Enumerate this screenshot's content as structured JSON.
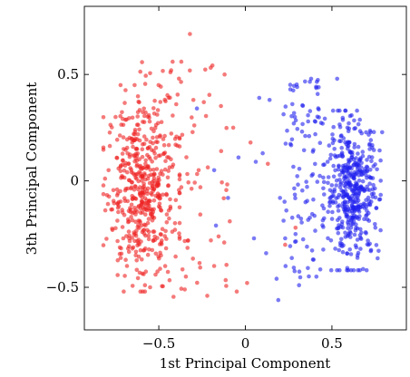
{
  "chart_data": {
    "type": "scatter",
    "title": "",
    "xlabel": "1st Principal Component",
    "ylabel": "3th Principal Component",
    "xlim": [
      -0.93,
      0.93
    ],
    "ylim": [
      -0.7,
      0.82
    ],
    "xticks": [
      -0.5,
      0,
      0.5
    ],
    "xtick_labels": [
      "−0.5",
      "0",
      "0.5"
    ],
    "yticks": [
      -0.5,
      0,
      0.5
    ],
    "ytick_labels": [
      "−0.5",
      "0",
      "0.5"
    ],
    "grid": false,
    "legend": "none",
    "series": [
      {
        "color": "#ee2222",
        "approx_points": 600,
        "main_cluster": {
          "x_range": [
            -0.82,
            -0.38
          ],
          "y_range": [
            -0.52,
            0.45
          ]
        },
        "spread": {
          "x_range": [
            -0.62,
            -0.1
          ],
          "y_range": [
            -0.55,
            0.56
          ]
        },
        "points": [
          [
            -0.32,
            0.69
          ],
          [
            -0.37,
            0.56
          ],
          [
            -0.42,
            0.56
          ],
          [
            -0.12,
            0.5
          ],
          [
            -0.24,
            0.37
          ],
          [
            -0.3,
            0.38
          ],
          [
            -0.22,
            -0.54
          ],
          [
            -0.35,
            -0.51
          ],
          [
            -0.58,
            -0.49
          ],
          [
            -0.09,
            -0.19
          ],
          [
            -0.27,
            0.05
          ],
          [
            -0.26,
            -0.03
          ],
          [
            -0.14,
            0.14
          ],
          [
            -0.75,
            0.3
          ],
          [
            -0.79,
            0.05
          ],
          [
            -0.55,
            -0.5
          ],
          [
            -0.18,
            -0.4
          ],
          [
            -0.05,
            -0.52
          ],
          [
            0.01,
            -0.48
          ],
          [
            0.29,
            -0.22
          ],
          [
            0.23,
            -0.3
          ],
          [
            -0.07,
            0.25
          ],
          [
            0.03,
            0.18
          ],
          [
            0.13,
            0.08
          ]
        ]
      },
      {
        "color": "#2222ee",
        "approx_points": 600,
        "main_cluster": {
          "x_range": [
            0.45,
            0.79
          ],
          "y_range": [
            -0.42,
            0.33
          ]
        },
        "spread": {
          "x_range": [
            0.22,
            0.45
          ],
          "y_range": [
            -0.47,
            0.48
          ]
        },
        "points": [
          [
            0.38,
            0.48
          ],
          [
            0.53,
            0.48
          ],
          [
            0.08,
            0.39
          ],
          [
            0.14,
            0.38
          ],
          [
            0.19,
            -0.56
          ],
          [
            0.18,
            -0.46
          ],
          [
            0.41,
            -0.45
          ],
          [
            0.31,
            -0.49
          ],
          [
            0.12,
            -0.34
          ],
          [
            0.23,
            -0.27
          ],
          [
            0.29,
            -0.25
          ],
          [
            -0.28,
            0.34
          ],
          [
            -0.18,
            0.05
          ],
          [
            -0.1,
            -0.08
          ],
          [
            -0.04,
            0.11
          ],
          [
            0.06,
            0.09
          ],
          [
            0.1,
            0.13
          ],
          [
            -0.17,
            -0.21
          ],
          [
            0.05,
            -0.27
          ],
          [
            0.28,
            0.27
          ],
          [
            0.26,
            0.43
          ],
          [
            0.2,
            -0.08
          ]
        ]
      }
    ]
  }
}
